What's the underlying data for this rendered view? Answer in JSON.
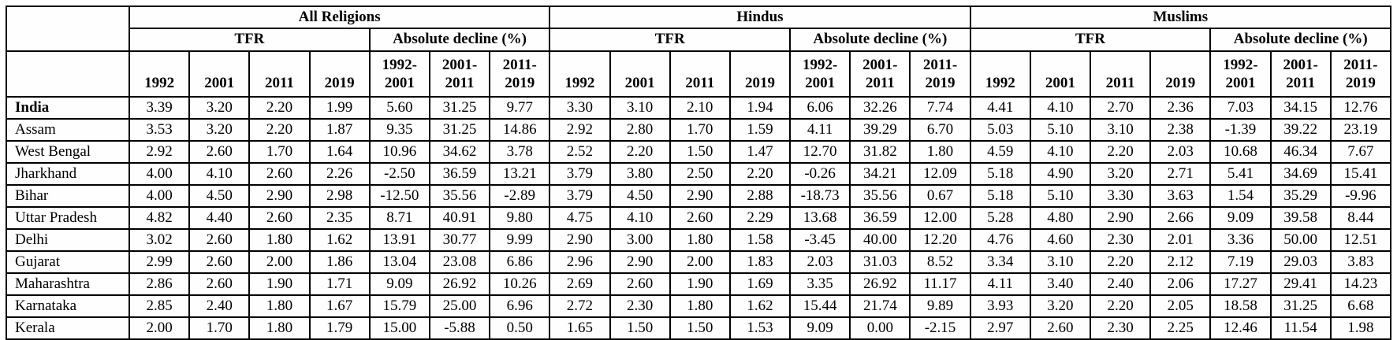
{
  "table": {
    "groups": [
      {
        "label": "All Religions"
      },
      {
        "label": "Hindus"
      },
      {
        "label": "Muslims"
      }
    ],
    "subheaders": {
      "tfr": "TFR",
      "decline": "Absolute decline (%)"
    },
    "year_columns": [
      "1992",
      "2001",
      "2011",
      "2019"
    ],
    "decline_columns": [
      "1992-\n2001",
      "2001-\n2011",
      "2011-\n2019"
    ],
    "rows": [
      {
        "state": "India",
        "bold": true,
        "all_religions": {
          "tfr": [
            "3.39",
            "3.20",
            "2.20",
            "1.99"
          ],
          "decline": [
            "5.60",
            "31.25",
            "9.77"
          ]
        },
        "hindus": {
          "tfr": [
            "3.30",
            "3.10",
            "2.10",
            "1.94"
          ],
          "decline": [
            "6.06",
            "32.26",
            "7.74"
          ]
        },
        "muslims": {
          "tfr": [
            "4.41",
            "4.10",
            "2.70",
            "2.36"
          ],
          "decline": [
            "7.03",
            "34.15",
            "12.76"
          ]
        }
      },
      {
        "state": "Assam",
        "bold": false,
        "all_religions": {
          "tfr": [
            "3.53",
            "3.20",
            "2.20",
            "1.87"
          ],
          "decline": [
            "9.35",
            "31.25",
            "14.86"
          ]
        },
        "hindus": {
          "tfr": [
            "2.92",
            "2.80",
            "1.70",
            "1.59"
          ],
          "decline": [
            "4.11",
            "39.29",
            "6.70"
          ]
        },
        "muslims": {
          "tfr": [
            "5.03",
            "5.10",
            "3.10",
            "2.38"
          ],
          "decline": [
            "-1.39",
            "39.22",
            "23.19"
          ]
        }
      },
      {
        "state": "West Bengal",
        "bold": false,
        "all_religions": {
          "tfr": [
            "2.92",
            "2.60",
            "1.70",
            "1.64"
          ],
          "decline": [
            "10.96",
            "34.62",
            "3.78"
          ]
        },
        "hindus": {
          "tfr": [
            "2.52",
            "2.20",
            "1.50",
            "1.47"
          ],
          "decline": [
            "12.70",
            "31.82",
            "1.80"
          ]
        },
        "muslims": {
          "tfr": [
            "4.59",
            "4.10",
            "2.20",
            "2.03"
          ],
          "decline": [
            "10.68",
            "46.34",
            "7.67"
          ]
        }
      },
      {
        "state": "Jharkhand",
        "bold": false,
        "all_religions": {
          "tfr": [
            "4.00",
            "4.10",
            "2.60",
            "2.26"
          ],
          "decline": [
            "-2.50",
            "36.59",
            "13.21"
          ]
        },
        "hindus": {
          "tfr": [
            "3.79",
            "3.80",
            "2.50",
            "2.20"
          ],
          "decline": [
            "-0.26",
            "34.21",
            "12.09"
          ]
        },
        "muslims": {
          "tfr": [
            "5.18",
            "4.90",
            "3.20",
            "2.71"
          ],
          "decline": [
            "5.41",
            "34.69",
            "15.41"
          ]
        }
      },
      {
        "state": "Bihar",
        "bold": false,
        "all_religions": {
          "tfr": [
            "4.00",
            "4.50",
            "2.90",
            "2.98"
          ],
          "decline": [
            "-12.50",
            "35.56",
            "-2.89"
          ]
        },
        "hindus": {
          "tfr": [
            "3.79",
            "4.50",
            "2.90",
            "2.88"
          ],
          "decline": [
            "-18.73",
            "35.56",
            "0.67"
          ]
        },
        "muslims": {
          "tfr": [
            "5.18",
            "5.10",
            "3.30",
            "3.63"
          ],
          "decline": [
            "1.54",
            "35.29",
            "-9.96"
          ]
        }
      },
      {
        "state": "Uttar Pradesh",
        "bold": false,
        "all_religions": {
          "tfr": [
            "4.82",
            "4.40",
            "2.60",
            "2.35"
          ],
          "decline": [
            "8.71",
            "40.91",
            "9.80"
          ]
        },
        "hindus": {
          "tfr": [
            "4.75",
            "4.10",
            "2.60",
            "2.29"
          ],
          "decline": [
            "13.68",
            "36.59",
            "12.00"
          ]
        },
        "muslims": {
          "tfr": [
            "5.28",
            "4.80",
            "2.90",
            "2.66"
          ],
          "decline": [
            "9.09",
            "39.58",
            "8.44"
          ]
        }
      },
      {
        "state": "Delhi",
        "bold": false,
        "all_religions": {
          "tfr": [
            "3.02",
            "2.60",
            "1.80",
            "1.62"
          ],
          "decline": [
            "13.91",
            "30.77",
            "9.99"
          ]
        },
        "hindus": {
          "tfr": [
            "2.90",
            "3.00",
            "1.80",
            "1.58"
          ],
          "decline": [
            "-3.45",
            "40.00",
            "12.20"
          ]
        },
        "muslims": {
          "tfr": [
            "4.76",
            "4.60",
            "2.30",
            "2.01"
          ],
          "decline": [
            "3.36",
            "50.00",
            "12.51"
          ]
        }
      },
      {
        "state": "Gujarat",
        "bold": false,
        "all_religions": {
          "tfr": [
            "2.99",
            "2.60",
            "2.00",
            "1.86"
          ],
          "decline": [
            "13.04",
            "23.08",
            "6.86"
          ]
        },
        "hindus": {
          "tfr": [
            "2.96",
            "2.90",
            "2.00",
            "1.83"
          ],
          "decline": [
            "2.03",
            "31.03",
            "8.52"
          ]
        },
        "muslims": {
          "tfr": [
            "3.34",
            "3.10",
            "2.20",
            "2.12"
          ],
          "decline": [
            "7.19",
            "29.03",
            "3.83"
          ]
        }
      },
      {
        "state": "Maharashtra",
        "bold": false,
        "all_religions": {
          "tfr": [
            "2.86",
            "2.60",
            "1.90",
            "1.71"
          ],
          "decline": [
            "9.09",
            "26.92",
            "10.26"
          ]
        },
        "hindus": {
          "tfr": [
            "2.69",
            "2.60",
            "1.90",
            "1.69"
          ],
          "decline": [
            "3.35",
            "26.92",
            "11.17"
          ]
        },
        "muslims": {
          "tfr": [
            "4.11",
            "3.40",
            "2.40",
            "2.06"
          ],
          "decline": [
            "17.27",
            "29.41",
            "14.23"
          ]
        }
      },
      {
        "state": "Karnataka",
        "bold": false,
        "all_religions": {
          "tfr": [
            "2.85",
            "2.40",
            "1.80",
            "1.67"
          ],
          "decline": [
            "15.79",
            "25.00",
            "6.96"
          ]
        },
        "hindus": {
          "tfr": [
            "2.72",
            "2.30",
            "1.80",
            "1.62"
          ],
          "decline": [
            "15.44",
            "21.74",
            "9.89"
          ]
        },
        "muslims": {
          "tfr": [
            "3.93",
            "3.20",
            "2.20",
            "2.05"
          ],
          "decline": [
            "18.58",
            "31.25",
            "6.68"
          ]
        }
      },
      {
        "state": "Kerala",
        "bold": false,
        "all_religions": {
          "tfr": [
            "2.00",
            "1.70",
            "1.80",
            "1.79"
          ],
          "decline": [
            "15.00",
            "-5.88",
            "0.50"
          ]
        },
        "hindus": {
          "tfr": [
            "1.65",
            "1.50",
            "1.50",
            "1.53"
          ],
          "decline": [
            "9.09",
            "0.00",
            "-2.15"
          ]
        },
        "muslims": {
          "tfr": [
            "2.97",
            "2.60",
            "2.30",
            "2.25"
          ],
          "decline": [
            "12.46",
            "11.54",
            "1.98"
          ]
        }
      }
    ]
  }
}
